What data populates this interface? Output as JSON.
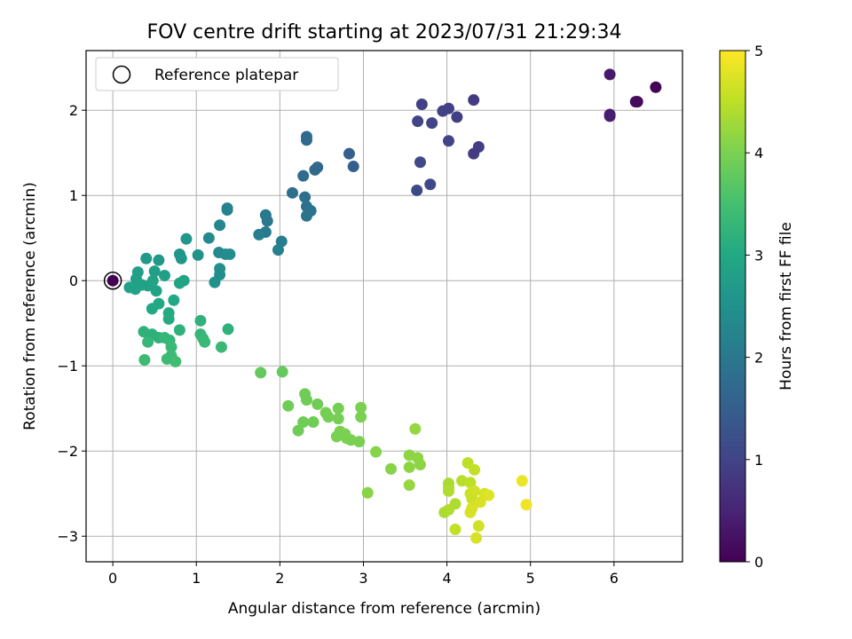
{
  "chart_data": {
    "type": "scatter",
    "title": "FOV centre drift starting at 2023/07/31 21:29:34",
    "xlabel": "Angular distance from reference (arcmin)",
    "ylabel": "Rotation from reference (arcmin)",
    "xlim": [
      -0.32,
      6.82
    ],
    "ylim": [
      -3.3,
      2.7
    ],
    "xticks": [
      0,
      1,
      2,
      3,
      4,
      5,
      6
    ],
    "yticks": [
      -3,
      -2,
      -1,
      0,
      1,
      2
    ],
    "grid": true,
    "legend": {
      "position": "top-left",
      "entries": [
        "Reference platepar"
      ]
    },
    "colorbar": {
      "label": "Hours from first FF file",
      "range": [
        0,
        5
      ],
      "ticks": [
        0,
        1,
        2,
        3,
        4,
        5
      ],
      "colormap": "viridis"
    },
    "reference_point": {
      "x": 0,
      "y": 0,
      "h": 0
    },
    "columns": [
      "x",
      "y",
      "hours"
    ],
    "points": [
      [
        6.5,
        2.27,
        0.05
      ],
      [
        6.28,
        2.1,
        0.1
      ],
      [
        6.26,
        2.1,
        0.15
      ],
      [
        5.95,
        2.42,
        0.35
      ],
      [
        5.95,
        1.95,
        0.4
      ],
      [
        5.95,
        1.93,
        0.42
      ],
      [
        4.32,
        2.12,
        0.85
      ],
      [
        4.38,
        1.57,
        0.9
      ],
      [
        4.32,
        1.49,
        0.88
      ],
      [
        3.95,
        1.99,
        0.95
      ],
      [
        4.02,
        2.02,
        0.95
      ],
      [
        4.12,
        1.92,
        0.9
      ],
      [
        3.7,
        2.07,
        0.95
      ],
      [
        3.65,
        1.87,
        1.0
      ],
      [
        3.82,
        1.85,
        1.0
      ],
      [
        4.02,
        1.64,
        1.0
      ],
      [
        3.68,
        1.39,
        1.1
      ],
      [
        3.8,
        1.13,
        1.1
      ],
      [
        3.64,
        1.06,
        1.12
      ],
      [
        2.83,
        1.49,
        1.5
      ],
      [
        2.88,
        1.34,
        1.5
      ],
      [
        2.45,
        1.33,
        1.65
      ],
      [
        2.42,
        1.3,
        1.7
      ],
      [
        2.32,
        1.69,
        1.7
      ],
      [
        2.32,
        1.65,
        1.72
      ],
      [
        2.28,
        1.23,
        1.75
      ],
      [
        2.3,
        0.98,
        1.8
      ],
      [
        2.32,
        0.87,
        1.85
      ],
      [
        2.37,
        0.82,
        1.9
      ],
      [
        2.32,
        0.76,
        1.9
      ],
      [
        2.15,
        1.03,
        1.8
      ],
      [
        1.83,
        0.77,
        2.0
      ],
      [
        1.85,
        0.7,
        2.0
      ],
      [
        1.83,
        0.57,
        2.05
      ],
      [
        1.75,
        0.54,
        2.1
      ],
      [
        2.02,
        0.46,
        2.1
      ],
      [
        1.98,
        0.36,
        2.15
      ],
      [
        1.37,
        0.85,
        2.2
      ],
      [
        1.37,
        0.83,
        2.2
      ],
      [
        1.28,
        0.65,
        2.3
      ],
      [
        1.15,
        0.5,
        2.35
      ],
      [
        1.27,
        0.33,
        2.35
      ],
      [
        1.35,
        0.31,
        2.35
      ],
      [
        1.4,
        0.31,
        2.4
      ],
      [
        1.28,
        0.14,
        2.45
      ],
      [
        1.28,
        0.07,
        2.45
      ],
      [
        1.22,
        -0.02,
        2.5
      ],
      [
        0.88,
        0.49,
        2.6
      ],
      [
        0.8,
        0.31,
        2.6
      ],
      [
        0.82,
        0.26,
        2.6
      ],
      [
        1.02,
        0.3,
        2.55
      ],
      [
        0.55,
        0.24,
        2.65
      ],
      [
        0.4,
        0.26,
        2.7
      ],
      [
        0.5,
        0.11,
        2.75
      ],
      [
        0.3,
        0.1,
        2.8
      ],
      [
        0.28,
        0.02,
        2.8
      ],
      [
        0.35,
        -0.05,
        2.85
      ],
      [
        0.2,
        -0.08,
        2.85
      ],
      [
        0.27,
        -0.1,
        2.9
      ],
      [
        0.42,
        -0.06,
        2.85
      ],
      [
        0.48,
        0.0,
        2.9
      ],
      [
        0.52,
        -0.12,
        2.9
      ],
      [
        0.62,
        0.06,
        2.8
      ],
      [
        0.8,
        -0.03,
        2.9
      ],
      [
        0.85,
        0.0,
        2.9
      ],
      [
        0.55,
        -0.27,
        3.0
      ],
      [
        0.47,
        -0.33,
        3.0
      ],
      [
        0.73,
        -0.23,
        3.0
      ],
      [
        0.67,
        -0.38,
        3.05
      ],
      [
        0.67,
        -0.45,
        3.05
      ],
      [
        1.05,
        -0.47,
        3.2
      ],
      [
        1.38,
        -0.57,
        3.2
      ],
      [
        0.8,
        -0.58,
        3.2
      ],
      [
        0.37,
        -0.6,
        3.2
      ],
      [
        0.47,
        -0.63,
        3.2
      ],
      [
        0.55,
        -0.67,
        3.2
      ],
      [
        0.62,
        -0.67,
        3.3
      ],
      [
        0.68,
        -0.7,
        3.3
      ],
      [
        0.42,
        -0.72,
        3.3
      ],
      [
        1.05,
        -0.63,
        3.3
      ],
      [
        1.08,
        -0.68,
        3.3
      ],
      [
        1.1,
        -0.72,
        3.35
      ],
      [
        0.7,
        -0.78,
        3.35
      ],
      [
        1.3,
        -0.78,
        3.35
      ],
      [
        0.7,
        -0.88,
        3.4
      ],
      [
        0.65,
        -0.92,
        3.4
      ],
      [
        0.75,
        -0.95,
        3.45
      ],
      [
        0.38,
        -0.93,
        3.4
      ],
      [
        1.77,
        -1.08,
        3.8
      ],
      [
        2.03,
        -1.07,
        3.8
      ],
      [
        2.1,
        -1.47,
        3.9
      ],
      [
        2.3,
        -1.33,
        3.9
      ],
      [
        2.32,
        -1.4,
        3.9
      ],
      [
        2.45,
        -1.45,
        3.9
      ],
      [
        2.22,
        -1.76,
        3.9
      ],
      [
        2.28,
        -1.66,
        3.9
      ],
      [
        2.4,
        -1.66,
        3.9
      ],
      [
        2.55,
        -1.55,
        3.95
      ],
      [
        2.58,
        -1.6,
        3.95
      ],
      [
        2.7,
        -1.5,
        3.95
      ],
      [
        2.7,
        -1.62,
        3.95
      ],
      [
        2.72,
        -1.77,
        4.0
      ],
      [
        2.68,
        -1.83,
        4.0
      ],
      [
        2.78,
        -1.8,
        4.0
      ],
      [
        2.8,
        -1.85,
        4.0
      ],
      [
        2.85,
        -1.87,
        4.0
      ],
      [
        2.97,
        -1.49,
        4.0
      ],
      [
        2.97,
        -1.6,
        4.0
      ],
      [
        2.95,
        -1.89,
        4.0
      ],
      [
        3.15,
        -2.01,
        4.1
      ],
      [
        3.33,
        -2.21,
        4.1
      ],
      [
        3.05,
        -2.49,
        4.1
      ],
      [
        3.55,
        -2.05,
        4.15
      ],
      [
        3.65,
        -2.08,
        4.15
      ],
      [
        3.68,
        -2.16,
        4.15
      ],
      [
        3.55,
        -2.19,
        4.15
      ],
      [
        3.55,
        -2.4,
        4.2
      ],
      [
        3.62,
        -1.74,
        4.2
      ],
      [
        3.97,
        -2.72,
        4.35
      ],
      [
        4.02,
        -2.38,
        4.35
      ],
      [
        4.02,
        -2.43,
        4.35
      ],
      [
        4.02,
        -2.47,
        4.4
      ],
      [
        4.1,
        -2.62,
        4.4
      ],
      [
        4.02,
        -2.69,
        4.4
      ],
      [
        4.18,
        -2.35,
        4.45
      ],
      [
        4.25,
        -2.14,
        4.5
      ],
      [
        4.28,
        -2.37,
        4.5
      ],
      [
        4.33,
        -2.22,
        4.55
      ],
      [
        4.28,
        -2.5,
        4.6
      ],
      [
        4.3,
        -2.56,
        4.6
      ],
      [
        4.33,
        -2.47,
        4.65
      ],
      [
        4.4,
        -2.6,
        4.7
      ],
      [
        4.45,
        -2.5,
        4.7
      ],
      [
        4.5,
        -2.52,
        4.75
      ],
      [
        4.28,
        -2.72,
        4.7
      ],
      [
        4.3,
        -2.67,
        4.7
      ],
      [
        4.1,
        -2.92,
        4.55
      ],
      [
        4.38,
        -2.88,
        4.65
      ],
      [
        4.35,
        -3.02,
        4.7
      ],
      [
        4.9,
        -2.35,
        4.85
      ],
      [
        4.95,
        -2.63,
        4.9
      ]
    ]
  }
}
